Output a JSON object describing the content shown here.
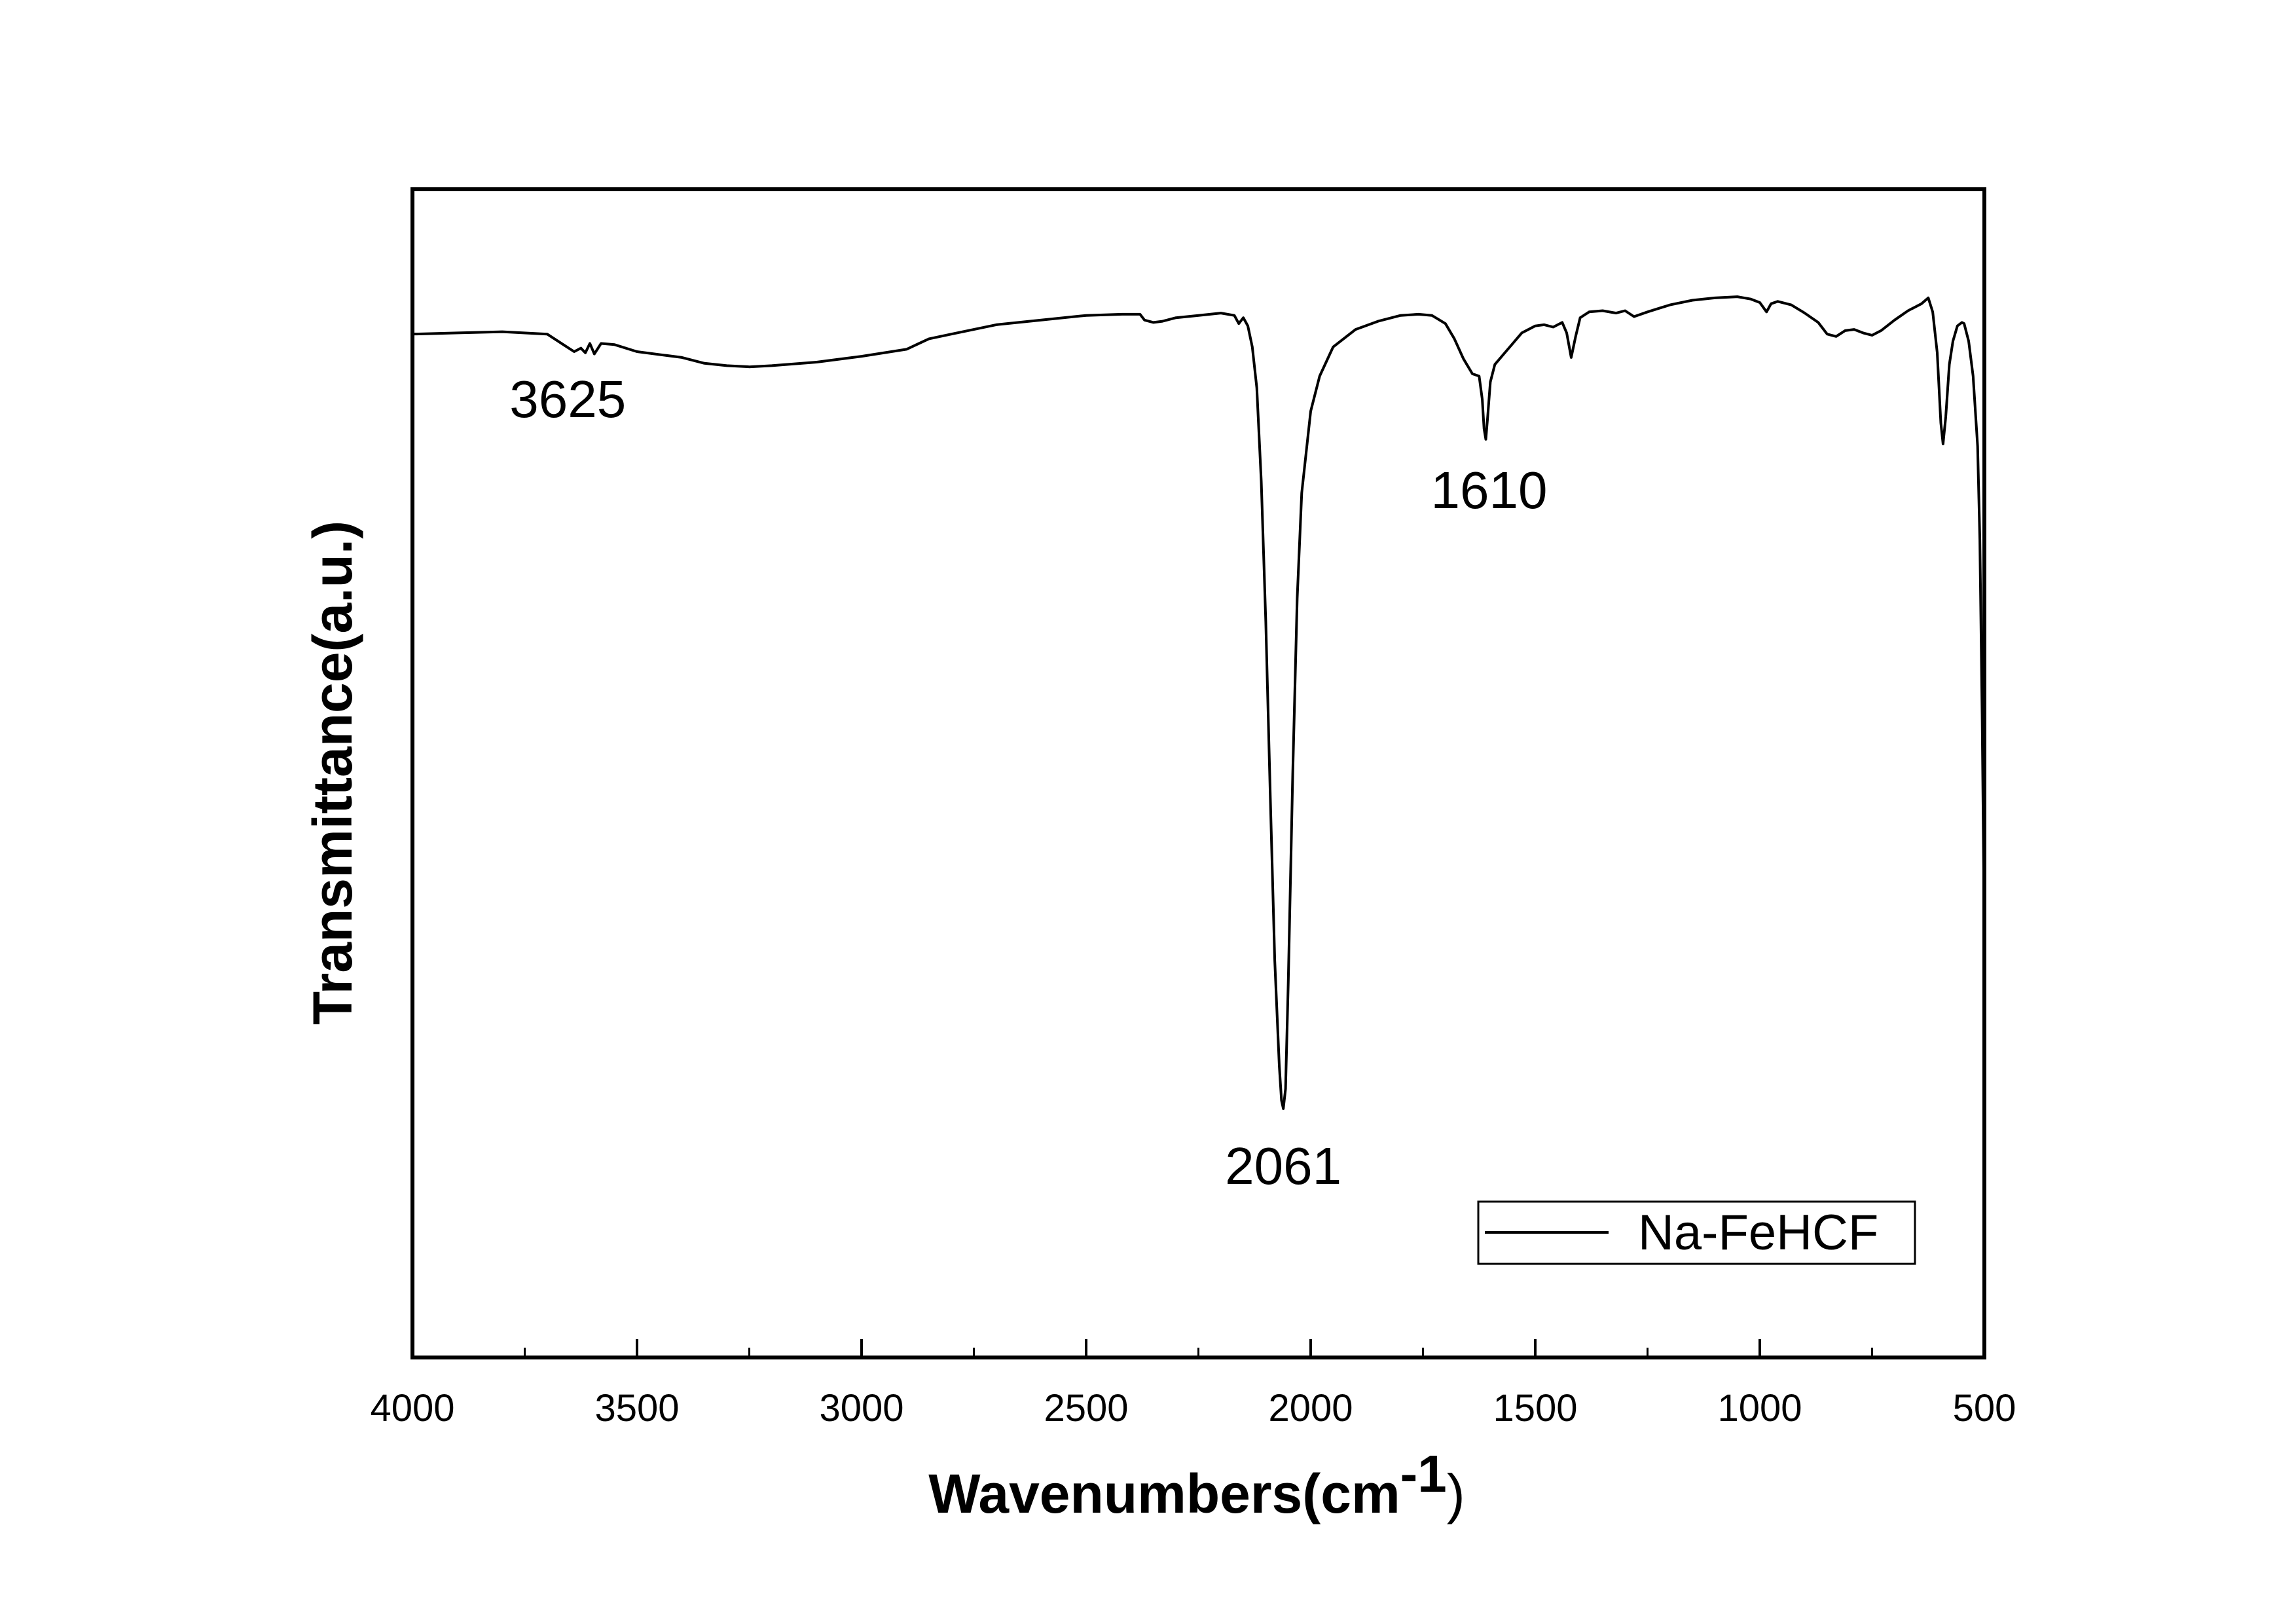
{
  "chart_data": {
    "type": "line",
    "title": "",
    "xlabel": "Wavenumbers(cm",
    "xlabel_superscript": "-1",
    "xlabel_suffix": ")",
    "ylabel": "Transmittance(a.u.)",
    "xlim": [
      4000,
      500
    ],
    "x_reversed": true,
    "ylim": [
      0,
      100
    ],
    "grid": false,
    "legend_placement": "bottom-right",
    "x_ticks": [
      4000,
      3500,
      3000,
      2500,
      2000,
      1500,
      1000,
      500
    ],
    "y_ticks": [],
    "series": [
      {
        "name": "Na-FeHCF",
        "color": "#000000",
        "points": [
          [
            4000,
            87.6
          ],
          [
            3900,
            87.7
          ],
          [
            3800,
            87.8
          ],
          [
            3700,
            87.6
          ],
          [
            3660,
            86.6
          ],
          [
            3640,
            86.1
          ],
          [
            3625,
            86.4
          ],
          [
            3615,
            86.0
          ],
          [
            3605,
            86.8
          ],
          [
            3595,
            85.9
          ],
          [
            3580,
            86.8
          ],
          [
            3550,
            86.7
          ],
          [
            3500,
            86.1
          ],
          [
            3400,
            85.6
          ],
          [
            3350,
            85.1
          ],
          [
            3300,
            84.9
          ],
          [
            3250,
            84.8
          ],
          [
            3200,
            84.9
          ],
          [
            3100,
            85.2
          ],
          [
            3000,
            85.7
          ],
          [
            2900,
            86.3
          ],
          [
            2850,
            87.2
          ],
          [
            2800,
            87.6
          ],
          [
            2700,
            88.4
          ],
          [
            2600,
            88.8
          ],
          [
            2500,
            89.2
          ],
          [
            2420,
            89.3
          ],
          [
            2380,
            89.3
          ],
          [
            2370,
            88.8
          ],
          [
            2350,
            88.6
          ],
          [
            2330,
            88.7
          ],
          [
            2300,
            89.0
          ],
          [
            2250,
            89.2
          ],
          [
            2200,
            89.4
          ],
          [
            2170,
            89.2
          ],
          [
            2160,
            88.5
          ],
          [
            2150,
            89.0
          ],
          [
            2140,
            88.3
          ],
          [
            2130,
            86.5
          ],
          [
            2120,
            83.0
          ],
          [
            2110,
            75.0
          ],
          [
            2100,
            63.0
          ],
          [
            2090,
            48.0
          ],
          [
            2080,
            34.0
          ],
          [
            2070,
            25.0
          ],
          [
            2065,
            22.0
          ],
          [
            2061,
            21.3
          ],
          [
            2056,
            23.0
          ],
          [
            2050,
            32.0
          ],
          [
            2040,
            50.0
          ],
          [
            2030,
            65.0
          ],
          [
            2020,
            74.0
          ],
          [
            2000,
            81.0
          ],
          [
            1980,
            84.0
          ],
          [
            1950,
            86.5
          ],
          [
            1900,
            88.0
          ],
          [
            1850,
            88.7
          ],
          [
            1800,
            89.2
          ],
          [
            1760,
            89.3
          ],
          [
            1730,
            89.2
          ],
          [
            1700,
            88.5
          ],
          [
            1680,
            87.2
          ],
          [
            1660,
            85.5
          ],
          [
            1640,
            84.2
          ],
          [
            1625,
            84.0
          ],
          [
            1618,
            82.0
          ],
          [
            1614,
            79.5
          ],
          [
            1610,
            78.6
          ],
          [
            1606,
            80.5
          ],
          [
            1600,
            83.5
          ],
          [
            1590,
            85.0
          ],
          [
            1570,
            85.9
          ],
          [
            1550,
            86.8
          ],
          [
            1530,
            87.7
          ],
          [
            1500,
            88.3
          ],
          [
            1480,
            88.4
          ],
          [
            1460,
            88.2
          ],
          [
            1440,
            88.6
          ],
          [
            1430,
            87.7
          ],
          [
            1420,
            85.6
          ],
          [
            1410,
            87.4
          ],
          [
            1400,
            89.0
          ],
          [
            1380,
            89.5
          ],
          [
            1350,
            89.6
          ],
          [
            1320,
            89.4
          ],
          [
            1300,
            89.6
          ],
          [
            1280,
            89.1
          ],
          [
            1250,
            89.5
          ],
          [
            1200,
            90.1
          ],
          [
            1150,
            90.5
          ],
          [
            1100,
            90.7
          ],
          [
            1050,
            90.8
          ],
          [
            1020,
            90.6
          ],
          [
            1000,
            90.3
          ],
          [
            985,
            89.5
          ],
          [
            975,
            90.2
          ],
          [
            960,
            90.4
          ],
          [
            930,
            90.1
          ],
          [
            900,
            89.4
          ],
          [
            870,
            88.6
          ],
          [
            850,
            87.6
          ],
          [
            830,
            87.4
          ],
          [
            810,
            87.9
          ],
          [
            790,
            88.0
          ],
          [
            770,
            87.7
          ],
          [
            750,
            87.5
          ],
          [
            730,
            87.9
          ],
          [
            700,
            88.8
          ],
          [
            670,
            89.6
          ],
          [
            640,
            90.2
          ],
          [
            625,
            90.7
          ],
          [
            615,
            89.5
          ],
          [
            605,
            86.0
          ],
          [
            597,
            80.0
          ],
          [
            592,
            78.2
          ],
          [
            586,
            80.5
          ],
          [
            578,
            85.0
          ],
          [
            570,
            87.0
          ],
          [
            560,
            88.3
          ],
          [
            550,
            88.6
          ],
          [
            545,
            88.5
          ],
          [
            535,
            87.0
          ],
          [
            525,
            84.0
          ],
          [
            515,
            78.0
          ],
          [
            510,
            70.0
          ],
          [
            505,
            55.0
          ],
          [
            501,
            40.0
          ]
        ]
      }
    ],
    "annotations": [
      {
        "text": "3625",
        "x": 3625,
        "y": 86.1
      },
      {
        "text": "2061",
        "x": 2061,
        "y": 21.3
      },
      {
        "text": "1610",
        "x": 1610,
        "y": 78.6
      }
    ]
  }
}
